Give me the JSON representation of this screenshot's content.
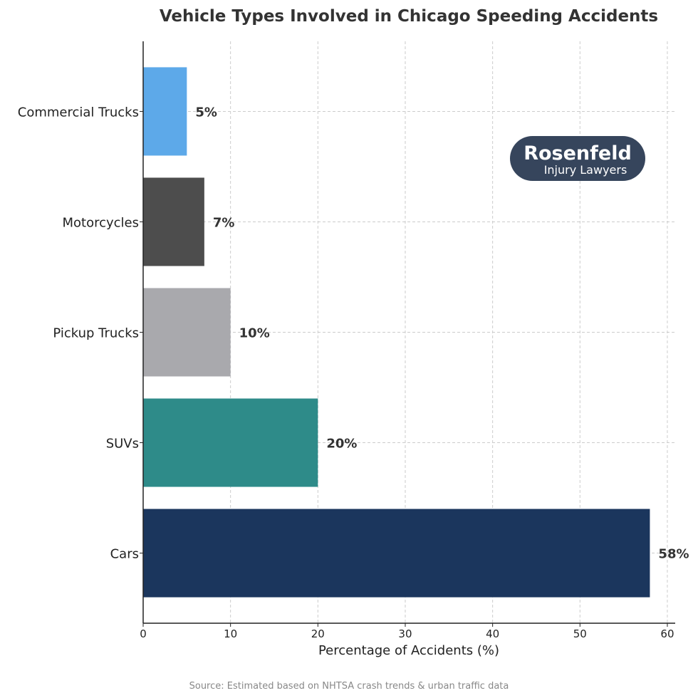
{
  "chart_data": {
    "type": "bar",
    "orientation": "horizontal",
    "title": "Vehicle Types Involved in Chicago Speeding Accidents",
    "xlabel": "Percentage of Accidents (%)",
    "ylabel": "",
    "categories": [
      "Commercial Trucks",
      "Motorcycles",
      "Pickup Trucks",
      "SUVs",
      "Cars"
    ],
    "values": [
      5,
      7,
      10,
      20,
      58
    ],
    "data_labels": [
      "5%",
      "7%",
      "10%",
      "20%",
      "58%"
    ],
    "colors": [
      "#5DA9E9",
      "#4D4D4D",
      "#A9A9AD",
      "#2E8B89",
      "#1B365D"
    ],
    "xlim": [
      0,
      60.9
    ],
    "xticks": [
      0,
      10,
      20,
      30,
      40,
      50,
      60
    ],
    "grid": true
  },
  "source": "Source: Estimated based on NHTSA crash trends & urban traffic data",
  "logo": {
    "line1": "Rosenfeld",
    "line2": "Injury Lawyers",
    "color": "#36455C"
  }
}
